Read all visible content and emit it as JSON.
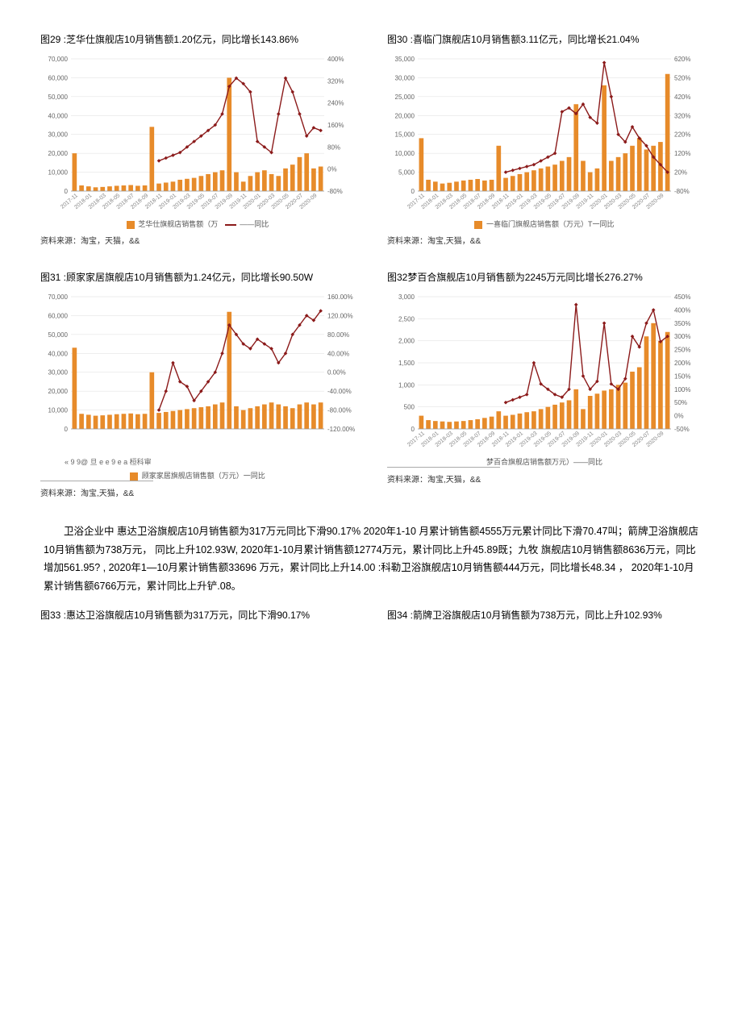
{
  "x_labels": [
    "2017-11",
    "2018-01",
    "2018-03",
    "2018-05",
    "2018-07",
    "2018-09",
    "2018-11",
    "2019-01",
    "2019-03",
    "2019-05",
    "2019-07",
    "2019-09",
    "2019-11",
    "2020-01",
    "2020-03",
    "2020-05",
    "2020-07",
    "2020-09"
  ],
  "x_tick_fontsize": 7,
  "x_tick_color": "#888888",
  "y_tick_fontsize": 8,
  "y_tick_color": "#666666",
  "bar_color": "#e78b2a",
  "line_color": "#8b1a1a",
  "marker_color": "#8b1a1a",
  "grid_color": "#dddddd",
  "background_color": "#ffffff",
  "chart29": {
    "title": "图29 :芝华仕旗舰店10月销售额1.20亿元，同比增长143.86%",
    "type": "bar+line",
    "y_left": {
      "min": 0,
      "max": 70000,
      "step": 10000
    },
    "y_right": {
      "min": -80,
      "max": 400,
      "step": 80,
      "suffix": "%"
    },
    "bars": [
      20000,
      3000,
      2500,
      2000,
      2200,
      2500,
      2800,
      3000,
      3200,
      2800,
      3000,
      34000,
      4000,
      4500,
      5000,
      6000,
      6500,
      7000,
      8000,
      9000,
      10000,
      11000,
      60000,
      10000,
      5000,
      8000,
      10000,
      11000,
      9000,
      8000,
      12000,
      14000,
      18000,
      20000,
      12000,
      13000
    ],
    "line": [
      null,
      null,
      null,
      null,
      null,
      null,
      null,
      null,
      null,
      null,
      null,
      null,
      30,
      40,
      50,
      60,
      80,
      100,
      120,
      140,
      160,
      200,
      300,
      330,
      310,
      280,
      100,
      80,
      60,
      200,
      330,
      280,
      200,
      120,
      150,
      140
    ],
    "legend_bar": "芝华仕旗舰店销售额（万",
    "legend_line": "——同比",
    "source": "资料来源：淘宝，天猫，&&"
  },
  "chart30": {
    "title": "图30 :喜临门旗舰店10月销售额3.11亿元，同比增长21.04%",
    "type": "bar+line",
    "y_left": {
      "min": 0,
      "max": 35000,
      "step": 5000
    },
    "y_right": {
      "min": -80,
      "max": 620,
      "step": 100,
      "suffix": "%"
    },
    "bars": [
      14000,
      3000,
      2500,
      2000,
      2200,
      2500,
      2800,
      3000,
      3200,
      2800,
      3000,
      12000,
      3500,
      4000,
      4500,
      5000,
      5500,
      6000,
      6500,
      7000,
      8000,
      9000,
      23000,
      8000,
      5000,
      6000,
      28000,
      8000,
      9000,
      10000,
      12000,
      14000,
      11000,
      12000,
      13000,
      31000
    ],
    "line": [
      null,
      null,
      null,
      null,
      null,
      null,
      null,
      null,
      null,
      null,
      null,
      null,
      20,
      30,
      40,
      50,
      60,
      80,
      100,
      120,
      340,
      360,
      330,
      380,
      310,
      280,
      600,
      420,
      220,
      180,
      260,
      200,
      160,
      100,
      60,
      20
    ],
    "legend_bar": "一喜临门旗舰店销售额（万元）T一同比",
    "legend_line": "",
    "source": "资料来源：淘宝,天猫，&&"
  },
  "chart31": {
    "title": "图31 :顾家家居旗舰店10月销售额为1.24亿元，同比增长90.50W",
    "type": "bar+line",
    "y_left": {
      "min": 0,
      "max": 70000,
      "step": 10000
    },
    "y_right": {
      "min": -120,
      "max": 160,
      "step": 40,
      "suffix": ".00%"
    },
    "bars": [
      43000,
      8000,
      7500,
      7000,
      7200,
      7500,
      7800,
      8000,
      8200,
      7800,
      8000,
      30000,
      8500,
      9000,
      9500,
      10000,
      10500,
      11000,
      11500,
      12000,
      13000,
      14000,
      62000,
      12000,
      10000,
      11000,
      12000,
      13000,
      14000,
      13000,
      12000,
      11000,
      13000,
      14000,
      13000,
      14000
    ],
    "line": [
      null,
      null,
      null,
      null,
      null,
      null,
      null,
      null,
      null,
      null,
      null,
      null,
      -80,
      -40,
      20,
      -20,
      -30,
      -60,
      -40,
      -20,
      0,
      40,
      100,
      80,
      60,
      50,
      70,
      60,
      50,
      20,
      40,
      80,
      100,
      120,
      110,
      130
    ],
    "legend_bar": "顾家家居旗舰店销售额（万元）一同比",
    "legend_line": "",
    "xlabel_alt": "« 9 9@ 旦 e e 9 e a 桓科审",
    "source": "资料来源：淘宝,天猫，&&"
  },
  "chart32": {
    "title": "图32梦百合旗舰店10月销售额为2245万元同比增长276.27%",
    "type": "bar+line",
    "y_left": {
      "min": 0,
      "max": 3000,
      "step": 500
    },
    "y_right": {
      "min": -50,
      "max": 450,
      "step": 50,
      "suffix": "%"
    },
    "bars": [
      300,
      200,
      180,
      170,
      160,
      170,
      180,
      200,
      220,
      250,
      280,
      400,
      300,
      320,
      350,
      380,
      400,
      450,
      500,
      550,
      600,
      650,
      900,
      450,
      750,
      800,
      870,
      900,
      1000,
      1050,
      1300,
      1400,
      2100,
      2400,
      2000,
      2200
    ],
    "line": [
      null,
      null,
      null,
      null,
      null,
      null,
      null,
      null,
      null,
      null,
      null,
      null,
      50,
      60,
      70,
      80,
      200,
      120,
      100,
      80,
      70,
      100,
      420,
      150,
      100,
      130,
      350,
      120,
      100,
      140,
      300,
      260,
      350,
      400,
      280,
      300
    ],
    "legend_bar": "梦百合旗舰店销售额万元）——同比",
    "legend_line": "",
    "source": "资料来源：淘宝,天猫，&&"
  },
  "body_paragraph": "卫浴企业中 惠达卫浴旗舰店10月销售额为317万元同比下滑90.17% 2020年1-10 月累计销售额4555万元累计同比下滑70.47叫；箭牌卫浴旗舰店10月销售额为738万元，   同比上升102.93W, 2020年1-10月累计销售额12774万元，累计同比上升45.89既；九牧  旗舰店10月销售额8636万元，同比增加561.95? , 2020年1—10月累计销售额33696 万元，累计同比上升14.00 :科勒卫浴旗舰店10月销售额444万元，同比增长48.34 ， 2020年1-10月累计销售额6766万元，累计同比上升铲.08。",
  "chart33": {
    "title": "图33 :惠达卫浴旗舰店10月销售额为317万元，同比下滑90.17%"
  },
  "chart34": {
    "title": "图34 :箭牌卫浴旗舰店10月销售额为738万元，同比上升102.93%"
  }
}
